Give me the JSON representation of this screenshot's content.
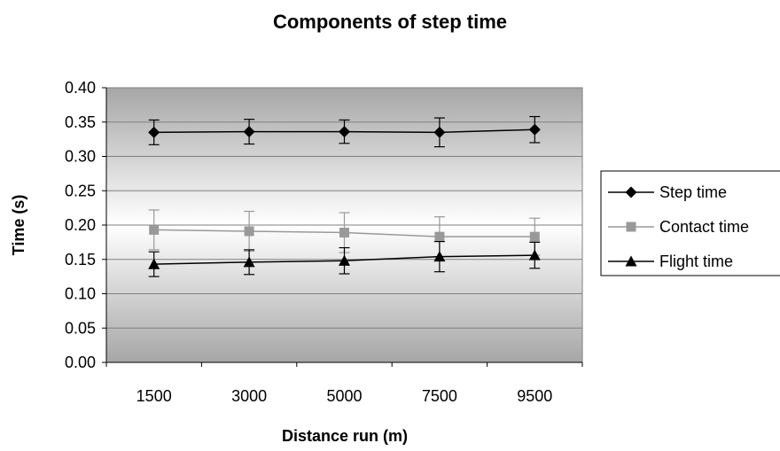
{
  "chart_data": {
    "type": "line",
    "title": "Components of step time",
    "xlabel": "Distance run (m)",
    "ylabel": "Time (s)",
    "categories": [
      "1500",
      "3000",
      "5000",
      "7500",
      "9500"
    ],
    "ylim": [
      0,
      0.4
    ],
    "yticks": [
      "0.00",
      "0.05",
      "0.10",
      "0.15",
      "0.20",
      "0.25",
      "0.30",
      "0.35",
      "0.40"
    ],
    "grid": true,
    "legend_position": "right",
    "series": [
      {
        "name": "Step time",
        "marker": "diamond",
        "color": "#000000",
        "values": [
          0.335,
          0.336,
          0.336,
          0.335,
          0.339
        ],
        "error": [
          0.018,
          0.018,
          0.017,
          0.021,
          0.019
        ]
      },
      {
        "name": "Contact time",
        "marker": "square",
        "color": "#999999",
        "values": [
          0.193,
          0.191,
          0.189,
          0.183,
          0.183
        ],
        "error": [
          0.029,
          0.029,
          0.029,
          0.029,
          0.027
        ]
      },
      {
        "name": "Flight time",
        "marker": "triangle",
        "color": "#000000",
        "values": [
          0.143,
          0.146,
          0.148,
          0.154,
          0.156
        ],
        "error": [
          0.018,
          0.018,
          0.019,
          0.022,
          0.019
        ]
      }
    ]
  }
}
